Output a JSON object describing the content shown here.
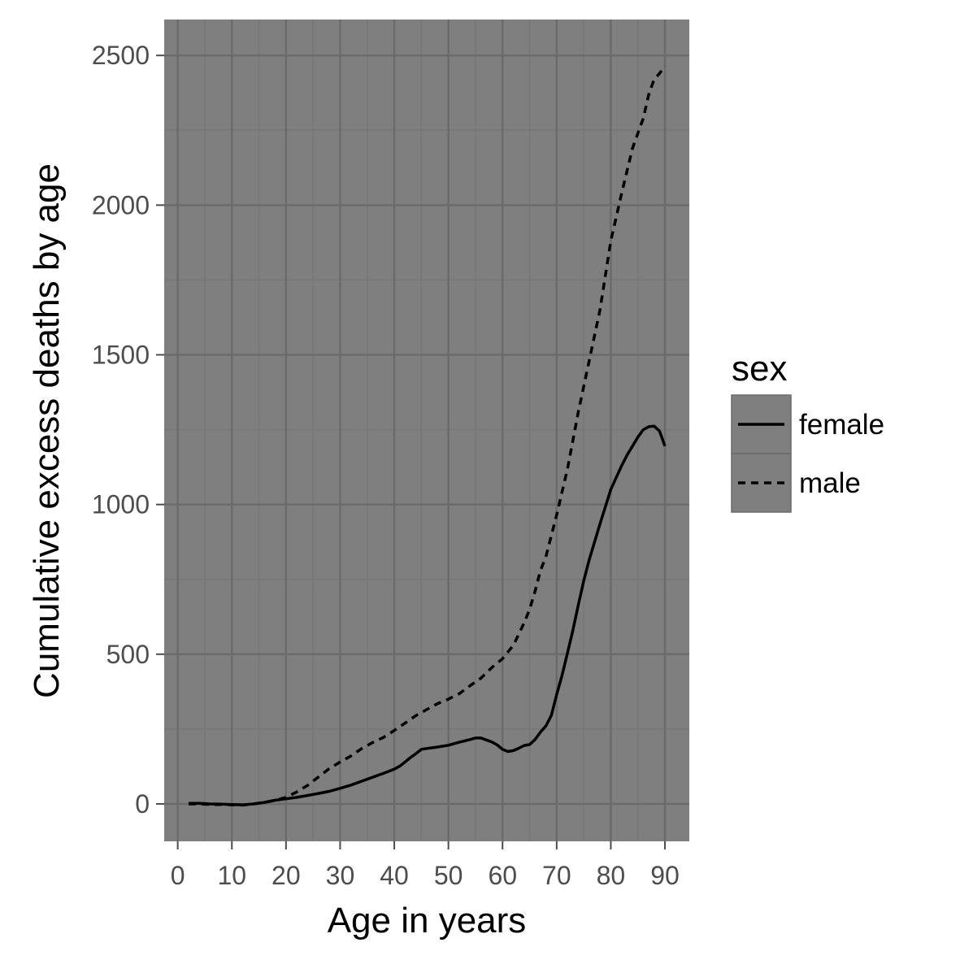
{
  "chart_data": {
    "type": "line",
    "title": "",
    "xlabel": "Age in years",
    "ylabel": "Cumulative excess deaths by age",
    "xlim": [
      -2.5,
      94.5
    ],
    "ylim": [
      -125,
      2620
    ],
    "x_ticks": [
      0,
      10,
      20,
      30,
      40,
      50,
      60,
      70,
      80,
      90
    ],
    "x_tick_labels": [
      "0",
      "10",
      "20",
      "30",
      "40",
      "50",
      "60",
      "70",
      "80",
      "90"
    ],
    "y_ticks": [
      0,
      500,
      1000,
      1500,
      2000,
      2500
    ],
    "y_tick_labels": [
      "0",
      "500",
      "1000",
      "1500",
      "2000",
      "2500"
    ],
    "grid": true,
    "legend": {
      "title": "sex",
      "position": "right"
    },
    "colors": {
      "panel": "#7f7f7f",
      "grid_major": "#6b6b6b",
      "grid_minor": "#777777",
      "line": "#000000",
      "legend_key": "#7f7f7f"
    },
    "series": [
      {
        "name": "female",
        "line_style": "solid",
        "x": [
          2,
          4,
          6,
          8,
          10,
          12,
          14,
          16,
          18,
          20,
          22,
          24,
          26,
          28,
          30,
          32,
          34,
          36,
          38,
          40,
          41,
          42,
          43,
          44,
          45,
          46,
          48,
          50,
          52,
          54,
          55,
          56,
          58,
          59,
          60,
          61,
          62,
          63,
          64,
          65,
          66,
          67,
          68,
          69,
          70,
          71,
          72,
          73,
          74,
          75,
          76,
          78,
          80,
          82,
          83,
          84,
          85,
          86,
          87,
          88,
          89,
          90
        ],
        "y": [
          2,
          2,
          0,
          -1,
          -2,
          -3,
          0,
          5,
          12,
          17,
          22,
          28,
          35,
          42,
          52,
          63,
          76,
          89,
          102,
          116,
          126,
          140,
          155,
          168,
          182,
          185,
          190,
          196,
          206,
          215,
          220,
          220,
          207,
          197,
          182,
          175,
          178,
          186,
          195,
          198,
          215,
          240,
          260,
          295,
          365,
          430,
          505,
          580,
          665,
          745,
          815,
          935,
          1050,
          1130,
          1165,
          1195,
          1225,
          1250,
          1260,
          1262,
          1245,
          1195
        ]
      },
      {
        "name": "male",
        "line_style": "dashed",
        "x": [
          2,
          4,
          6,
          8,
          10,
          12,
          14,
          16,
          18,
          20,
          22,
          24,
          26,
          28,
          30,
          32,
          34,
          36,
          38,
          40,
          42,
          44,
          46,
          48,
          50,
          52,
          54,
          56,
          58,
          60,
          62,
          64,
          65,
          66,
          67,
          68,
          70,
          72,
          74,
          76,
          78,
          80,
          82,
          84,
          86,
          87,
          88,
          89,
          90
        ],
        "y": [
          0,
          0,
          -2,
          -2,
          -3,
          -4,
          0,
          5,
          12,
          22,
          40,
          62,
          90,
          118,
          140,
          160,
          185,
          205,
          222,
          245,
          270,
          295,
          315,
          335,
          350,
          368,
          395,
          420,
          455,
          485,
          530,
          605,
          650,
          710,
          780,
          825,
          965,
          1120,
          1310,
          1480,
          1650,
          1880,
          2040,
          2190,
          2290,
          2370,
          2420,
          2440,
          2465
        ]
      }
    ]
  }
}
